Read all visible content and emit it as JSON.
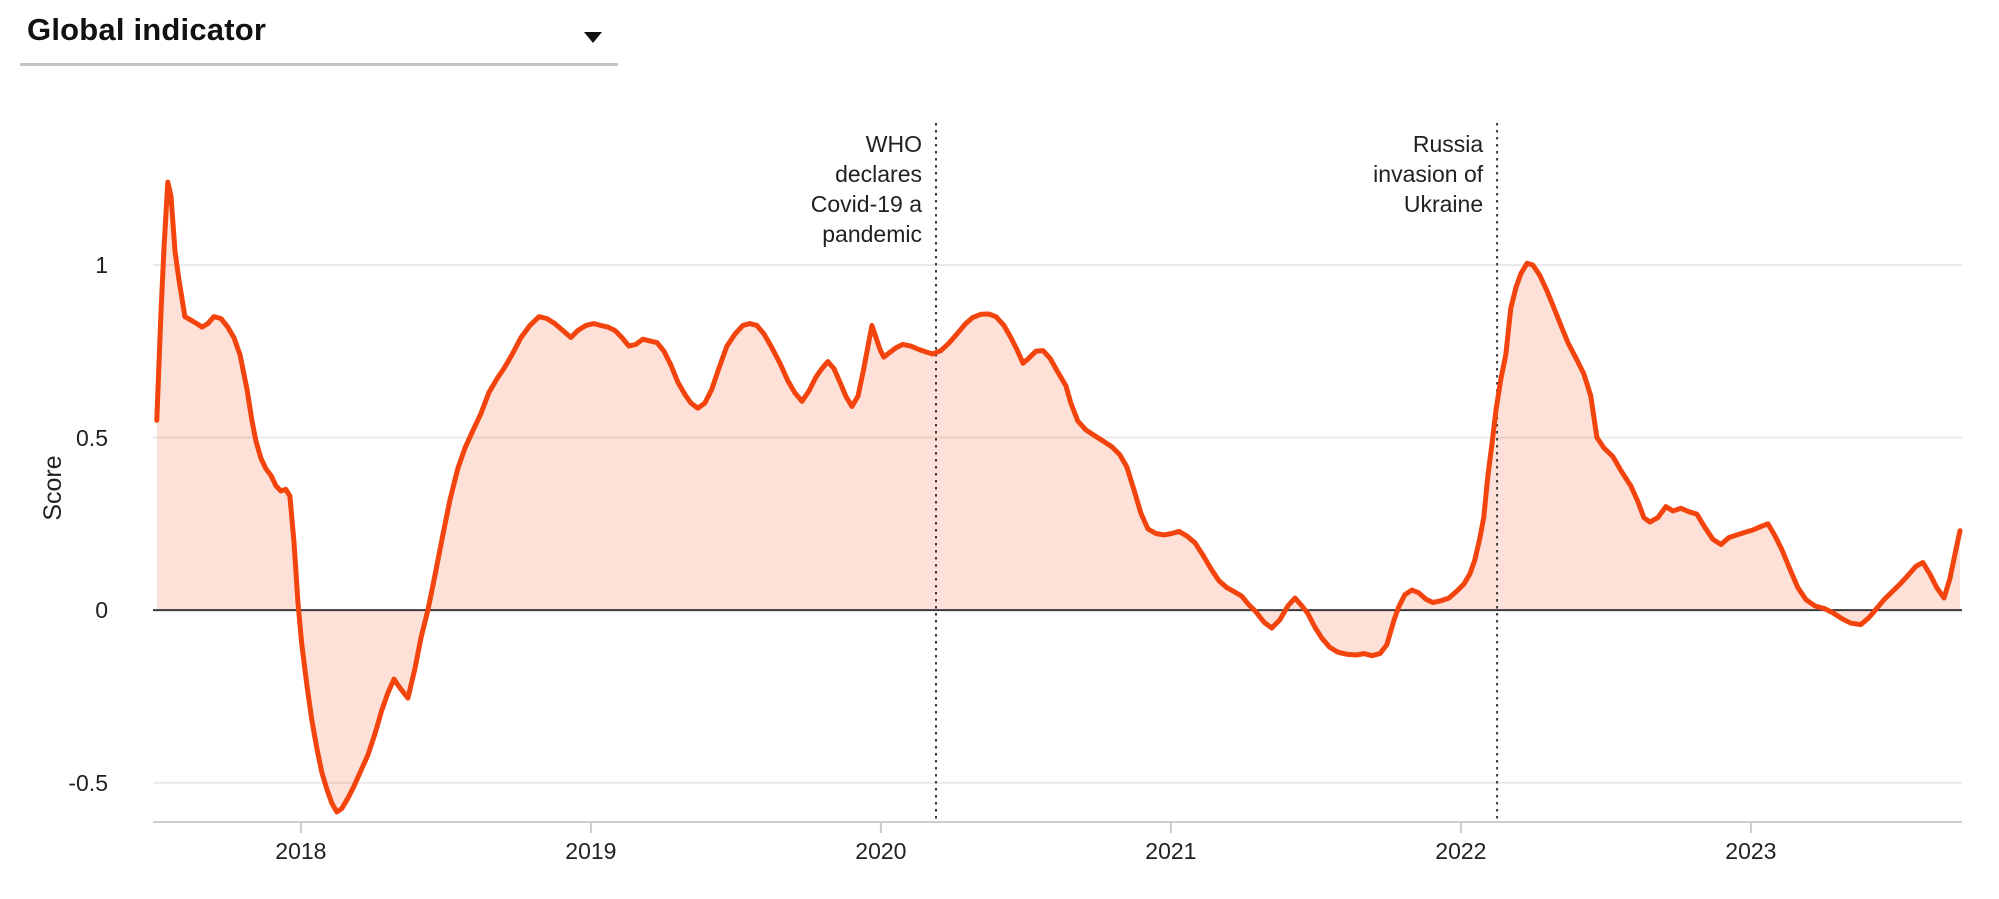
{
  "header": {
    "dropdown_label": "Global indicator",
    "caret_icon": "dropdown-caret"
  },
  "chart_data": {
    "type": "area",
    "title": "",
    "xlabel": "",
    "ylabel": "Score",
    "x_range": [
      2017.49,
      2023.728
    ],
    "y_range": [
      -0.614,
      1.507
    ],
    "grid": "horizontal",
    "legend": "none",
    "x_ticks": [
      {
        "label": "2018",
        "value": 2018
      },
      {
        "label": "2019",
        "value": 2019
      },
      {
        "label": "2020",
        "value": 2020
      },
      {
        "label": "2021",
        "value": 2021
      },
      {
        "label": "2022",
        "value": 2022
      },
      {
        "label": "2023",
        "value": 2023
      }
    ],
    "y_ticks": [
      {
        "label": "1",
        "value": 1
      },
      {
        "label": "0.5",
        "value": 0.5
      },
      {
        "label": "0",
        "value": 0
      },
      {
        "label": "-0.5",
        "value": -0.5
      }
    ],
    "annotations": [
      {
        "x": 2020.19,
        "lines": [
          "WHO",
          "declares",
          "Covid-19 a",
          "pandemic"
        ],
        "label": "WHO declares Covid-19 a pandemic"
      },
      {
        "x": 2022.125,
        "lines": [
          "Russia",
          "invasion of",
          "Ukraine"
        ],
        "label": "Russia invasion of Ukraine"
      }
    ],
    "colors": {
      "line": "#f4440e",
      "fill": "rgba(244,68,14,0.16)",
      "grid": "#e9e9e9",
      "axis": "#cccccc",
      "zero_line": "#3a3a3e",
      "annotation_line": "#3a3a3a",
      "text": "#202124"
    },
    "series": [
      {
        "name": "Global indicator",
        "points": [
          [
            2017.503,
            0.55
          ],
          [
            2017.517,
            0.85
          ],
          [
            2017.528,
            1.05
          ],
          [
            2017.541,
            1.24
          ],
          [
            2017.552,
            1.2
          ],
          [
            2017.566,
            1.04
          ],
          [
            2017.579,
            0.96
          ],
          [
            2017.6,
            0.85
          ],
          [
            2017.621,
            0.84
          ],
          [
            2017.641,
            0.83
          ],
          [
            2017.659,
            0.82
          ],
          [
            2017.679,
            0.83
          ],
          [
            2017.7,
            0.85
          ],
          [
            2017.724,
            0.845
          ],
          [
            2017.748,
            0.82
          ],
          [
            2017.769,
            0.79
          ],
          [
            2017.79,
            0.74
          ],
          [
            2017.814,
            0.64
          ],
          [
            2017.831,
            0.55
          ],
          [
            2017.845,
            0.49
          ],
          [
            2017.862,
            0.44
          ],
          [
            2017.879,
            0.41
          ],
          [
            2017.897,
            0.39
          ],
          [
            2017.914,
            0.36
          ],
          [
            2017.931,
            0.345
          ],
          [
            2017.948,
            0.35
          ],
          [
            2017.962,
            0.33
          ],
          [
            2017.976,
            0.2
          ],
          [
            2017.99,
            0.02
          ],
          [
            2018.003,
            -0.1
          ],
          [
            2018.021,
            -0.22
          ],
          [
            2018.038,
            -0.32
          ],
          [
            2018.055,
            -0.4
          ],
          [
            2018.072,
            -0.47
          ],
          [
            2018.09,
            -0.52
          ],
          [
            2018.107,
            -0.56
          ],
          [
            2018.124,
            -0.585
          ],
          [
            2018.141,
            -0.575
          ],
          [
            2018.162,
            -0.545
          ],
          [
            2018.183,
            -0.51
          ],
          [
            2018.207,
            -0.465
          ],
          [
            2018.231,
            -0.42
          ],
          [
            2018.255,
            -0.36
          ],
          [
            2018.279,
            -0.29
          ],
          [
            2018.3,
            -0.24
          ],
          [
            2018.321,
            -0.2
          ],
          [
            2018.341,
            -0.225
          ],
          [
            2018.369,
            -0.255
          ],
          [
            2018.393,
            -0.17
          ],
          [
            2018.414,
            -0.08
          ],
          [
            2018.438,
            0.0
          ],
          [
            2018.462,
            0.1
          ],
          [
            2018.49,
            0.22
          ],
          [
            2018.514,
            0.32
          ],
          [
            2018.541,
            0.41
          ],
          [
            2018.566,
            0.47
          ],
          [
            2018.593,
            0.52
          ],
          [
            2018.621,
            0.57
          ],
          [
            2018.648,
            0.63
          ],
          [
            2018.676,
            0.67
          ],
          [
            2018.7,
            0.7
          ],
          [
            2018.728,
            0.74
          ],
          [
            2018.759,
            0.79
          ],
          [
            2018.79,
            0.825
          ],
          [
            2018.821,
            0.85
          ],
          [
            2018.848,
            0.845
          ],
          [
            2018.876,
            0.83
          ],
          [
            2018.903,
            0.81
          ],
          [
            2018.931,
            0.79
          ],
          [
            2018.955,
            0.81
          ],
          [
            2018.983,
            0.825
          ],
          [
            2019.01,
            0.83
          ],
          [
            2019.034,
            0.825
          ],
          [
            2019.059,
            0.82
          ],
          [
            2019.083,
            0.81
          ],
          [
            2019.107,
            0.79
          ],
          [
            2019.131,
            0.765
          ],
          [
            2019.155,
            0.77
          ],
          [
            2019.179,
            0.785
          ],
          [
            2019.203,
            0.78
          ],
          [
            2019.228,
            0.775
          ],
          [
            2019.252,
            0.75
          ],
          [
            2019.276,
            0.71
          ],
          [
            2019.3,
            0.66
          ],
          [
            2019.324,
            0.625
          ],
          [
            2019.345,
            0.6
          ],
          [
            2019.369,
            0.585
          ],
          [
            2019.393,
            0.6
          ],
          [
            2019.417,
            0.64
          ],
          [
            2019.441,
            0.7
          ],
          [
            2019.469,
            0.765
          ],
          [
            2019.497,
            0.8
          ],
          [
            2019.524,
            0.825
          ],
          [
            2019.548,
            0.83
          ],
          [
            2019.572,
            0.825
          ],
          [
            2019.597,
            0.8
          ],
          [
            2019.624,
            0.76
          ],
          [
            2019.652,
            0.715
          ],
          [
            2019.679,
            0.665
          ],
          [
            2019.703,
            0.63
          ],
          [
            2019.728,
            0.605
          ],
          [
            2019.752,
            0.635
          ],
          [
            2019.776,
            0.675
          ],
          [
            2019.797,
            0.7
          ],
          [
            2019.817,
            0.72
          ],
          [
            2019.838,
            0.7
          ],
          [
            2019.859,
            0.66
          ],
          [
            2019.879,
            0.62
          ],
          [
            2019.9,
            0.59
          ],
          [
            2019.921,
            0.62
          ],
          [
            2019.941,
            0.7
          ],
          [
            2019.959,
            0.78
          ],
          [
            2019.969,
            0.825
          ],
          [
            2019.983,
            0.79
          ],
          [
            2019.997,
            0.755
          ],
          [
            2020.01,
            0.733
          ],
          [
            2020.028,
            0.745
          ],
          [
            2020.052,
            0.76
          ],
          [
            2020.076,
            0.77
          ],
          [
            2020.103,
            0.765
          ],
          [
            2020.131,
            0.755
          ],
          [
            2020.155,
            0.748
          ],
          [
            2020.179,
            0.742
          ],
          [
            2020.207,
            0.752
          ],
          [
            2020.234,
            0.773
          ],
          [
            2020.262,
            0.8
          ],
          [
            2020.29,
            0.828
          ],
          [
            2020.317,
            0.848
          ],
          [
            2020.345,
            0.857
          ],
          [
            2020.372,
            0.858
          ],
          [
            2020.397,
            0.85
          ],
          [
            2020.424,
            0.825
          ],
          [
            2020.448,
            0.79
          ],
          [
            2020.469,
            0.755
          ],
          [
            2020.49,
            0.715
          ],
          [
            2020.51,
            0.73
          ],
          [
            2020.534,
            0.75
          ],
          [
            2020.559,
            0.752
          ],
          [
            2020.583,
            0.73
          ],
          [
            2020.61,
            0.69
          ],
          [
            2020.638,
            0.65
          ],
          [
            2020.655,
            0.6
          ],
          [
            2020.679,
            0.548
          ],
          [
            2020.707,
            0.522
          ],
          [
            2020.734,
            0.507
          ],
          [
            2020.766,
            0.49
          ],
          [
            2020.797,
            0.473
          ],
          [
            2020.824,
            0.45
          ],
          [
            2020.848,
            0.415
          ],
          [
            2020.872,
            0.35
          ],
          [
            2020.897,
            0.28
          ],
          [
            2020.921,
            0.235
          ],
          [
            2020.948,
            0.222
          ],
          [
            2020.976,
            0.218
          ],
          [
            2021.003,
            0.222
          ],
          [
            2021.028,
            0.228
          ],
          [
            2021.055,
            0.215
          ],
          [
            2021.083,
            0.195
          ],
          [
            2021.11,
            0.16
          ],
          [
            2021.138,
            0.12
          ],
          [
            2021.166,
            0.085
          ],
          [
            2021.193,
            0.065
          ],
          [
            2021.221,
            0.052
          ],
          [
            2021.245,
            0.04
          ],
          [
            2021.269,
            0.015
          ],
          [
            2021.293,
            -0.005
          ],
          [
            2021.321,
            -0.035
          ],
          [
            2021.348,
            -0.052
          ],
          [
            2021.376,
            -0.028
          ],
          [
            2021.403,
            0.012
          ],
          [
            2021.428,
            0.035
          ],
          [
            2021.452,
            0.012
          ],
          [
            2021.472,
            -0.01
          ],
          [
            2021.497,
            -0.05
          ],
          [
            2021.521,
            -0.082
          ],
          [
            2021.548,
            -0.108
          ],
          [
            2021.576,
            -0.122
          ],
          [
            2021.607,
            -0.128
          ],
          [
            2021.638,
            -0.13
          ],
          [
            2021.666,
            -0.126
          ],
          [
            2021.693,
            -0.132
          ],
          [
            2021.721,
            -0.126
          ],
          [
            2021.745,
            -0.1
          ],
          [
            2021.769,
            -0.03
          ],
          [
            2021.786,
            0.01
          ],
          [
            2021.807,
            0.045
          ],
          [
            2021.831,
            0.058
          ],
          [
            2021.855,
            0.05
          ],
          [
            2021.879,
            0.032
          ],
          [
            2021.903,
            0.022
          ],
          [
            2021.931,
            0.027
          ],
          [
            2021.959,
            0.035
          ],
          [
            2021.986,
            0.055
          ],
          [
            2022.01,
            0.075
          ],
          [
            2022.031,
            0.105
          ],
          [
            2022.048,
            0.145
          ],
          [
            2022.066,
            0.21
          ],
          [
            2022.079,
            0.27
          ],
          [
            2022.093,
            0.39
          ],
          [
            2022.107,
            0.48
          ],
          [
            2022.121,
            0.58
          ],
          [
            2022.138,
            0.67
          ],
          [
            2022.155,
            0.74
          ],
          [
            2022.172,
            0.875
          ],
          [
            2022.19,
            0.935
          ],
          [
            2022.207,
            0.975
          ],
          [
            2022.228,
            1.005
          ],
          [
            2022.248,
            1.0
          ],
          [
            2022.272,
            0.97
          ],
          [
            2022.297,
            0.925
          ],
          [
            2022.321,
            0.875
          ],
          [
            2022.345,
            0.825
          ],
          [
            2022.369,
            0.775
          ],
          [
            2022.397,
            0.73
          ],
          [
            2022.424,
            0.685
          ],
          [
            2022.448,
            0.62
          ],
          [
            2022.469,
            0.5
          ],
          [
            2022.493,
            0.47
          ],
          [
            2022.524,
            0.445
          ],
          [
            2022.555,
            0.4
          ],
          [
            2022.586,
            0.36
          ],
          [
            2022.61,
            0.315
          ],
          [
            2022.631,
            0.268
          ],
          [
            2022.652,
            0.255
          ],
          [
            2022.679,
            0.268
          ],
          [
            2022.707,
            0.3
          ],
          [
            2022.731,
            0.287
          ],
          [
            2022.759,
            0.295
          ],
          [
            2022.786,
            0.285
          ],
          [
            2022.814,
            0.278
          ],
          [
            2022.841,
            0.24
          ],
          [
            2022.869,
            0.205
          ],
          [
            2022.897,
            0.19
          ],
          [
            2022.924,
            0.21
          ],
          [
            2022.952,
            0.218
          ],
          [
            2022.979,
            0.225
          ],
          [
            2023.007,
            0.232
          ],
          [
            2023.034,
            0.242
          ],
          [
            2023.059,
            0.25
          ],
          [
            2023.083,
            0.215
          ],
          [
            2023.107,
            0.175
          ],
          [
            2023.134,
            0.12
          ],
          [
            2023.162,
            0.065
          ],
          [
            2023.19,
            0.03
          ],
          [
            2023.221,
            0.012
          ],
          [
            2023.252,
            0.005
          ],
          [
            2023.283,
            -0.008
          ],
          [
            2023.314,
            -0.025
          ],
          [
            2023.345,
            -0.038
          ],
          [
            2023.379,
            -0.042
          ],
          [
            2023.407,
            -0.022
          ],
          [
            2023.431,
            0.002
          ],
          [
            2023.459,
            0.03
          ],
          [
            2023.486,
            0.052
          ],
          [
            2023.514,
            0.075
          ],
          [
            2023.541,
            0.1
          ],
          [
            2023.569,
            0.127
          ],
          [
            2023.593,
            0.138
          ],
          [
            2023.617,
            0.105
          ],
          [
            2023.641,
            0.065
          ],
          [
            2023.666,
            0.035
          ],
          [
            2023.686,
            0.09
          ],
          [
            2023.707,
            0.175
          ],
          [
            2023.721,
            0.23
          ]
        ]
      }
    ]
  }
}
